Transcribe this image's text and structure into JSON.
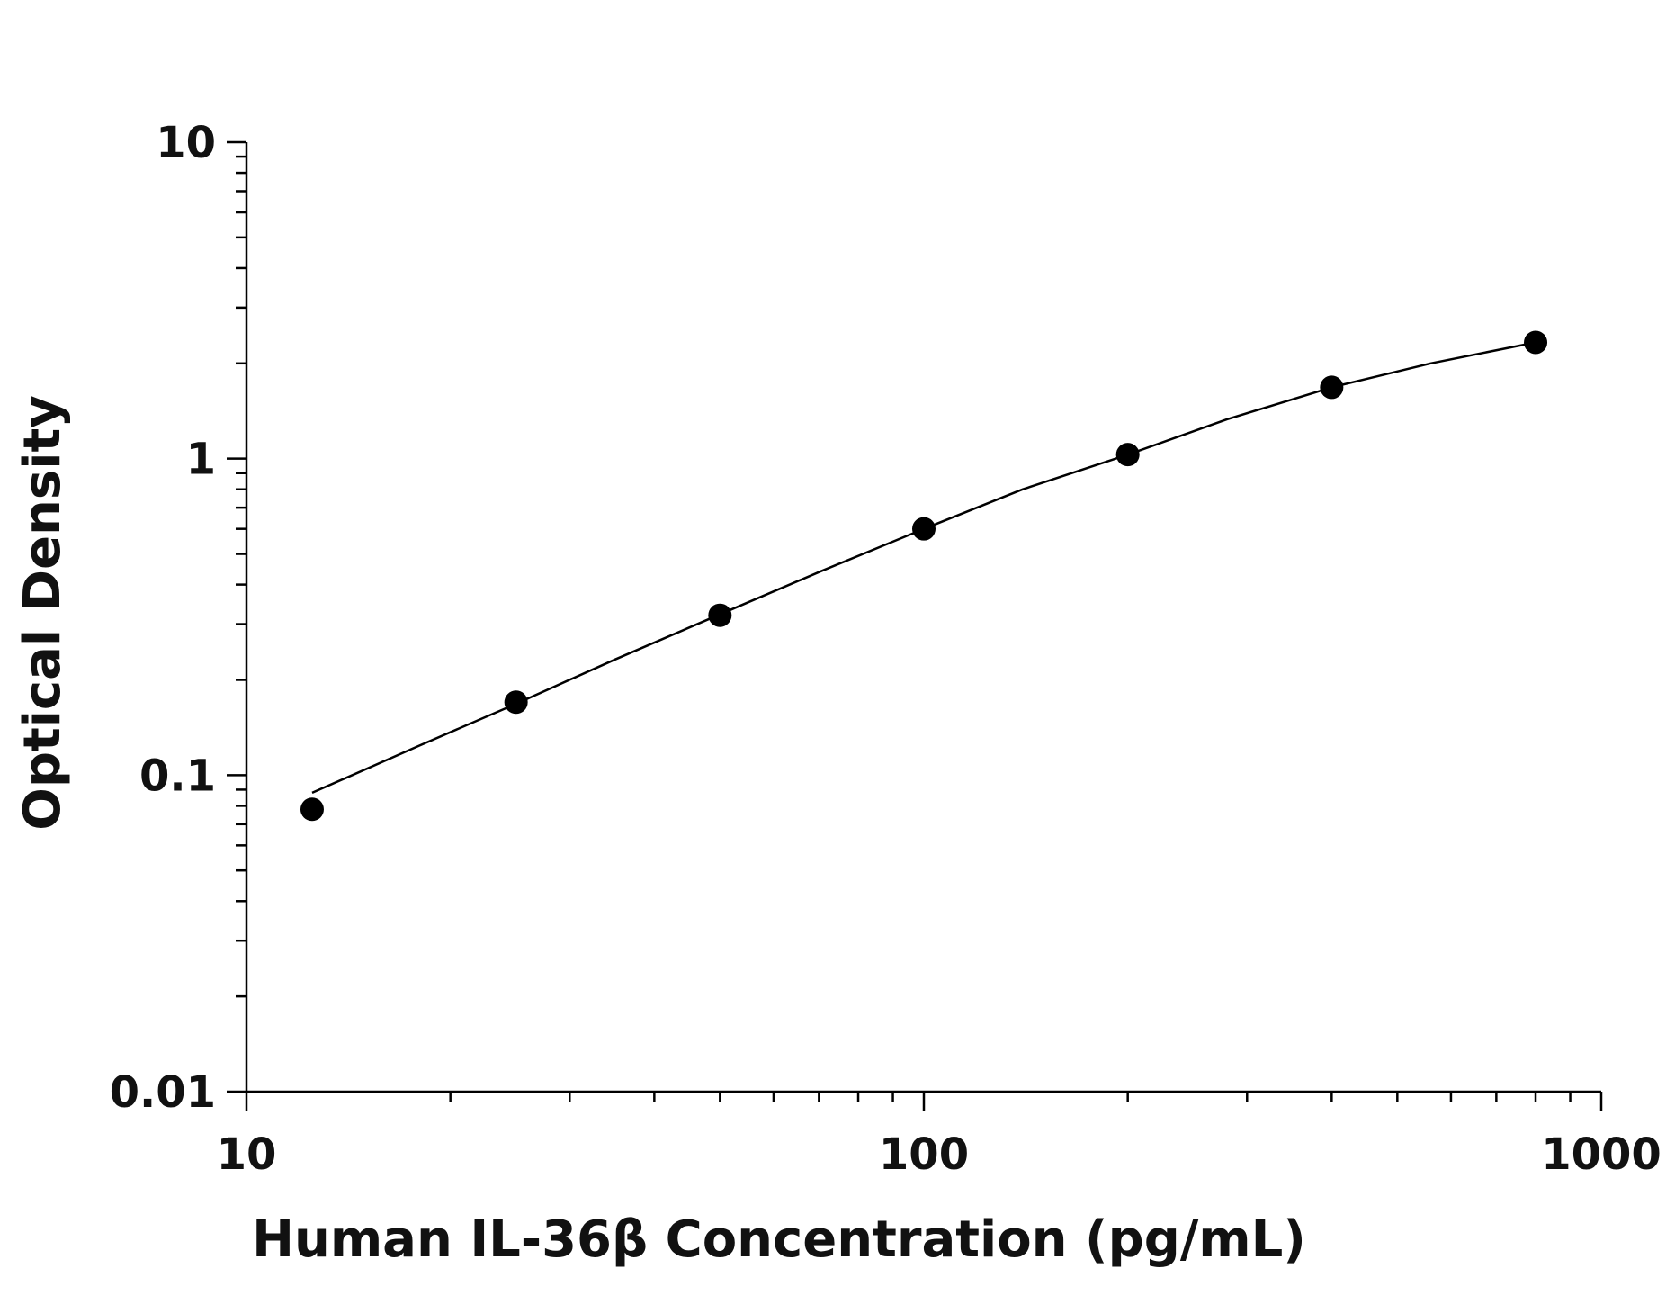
{
  "chart_data": {
    "type": "scatter",
    "title": "",
    "xlabel": "Human IL-36β Concentration (pg/mL)",
    "ylabel": "Optical Density",
    "x_scale": "log",
    "y_scale": "log",
    "xlim": [
      10,
      1000
    ],
    "ylim": [
      0.01,
      10
    ],
    "x_ticks": [
      "10",
      "100",
      "1000"
    ],
    "y_ticks": [
      "0.01",
      "0.1",
      "1",
      "10"
    ],
    "grid": false,
    "legend": "none",
    "series": [
      {
        "x": [
          12.5,
          25,
          50,
          100,
          200,
          400,
          800
        ],
        "y": [
          0.078,
          0.17,
          0.32,
          0.6,
          1.03,
          1.68,
          2.33
        ]
      }
    ],
    "fit_curve": {
      "x": [
        12.5,
        18,
        25,
        35,
        50,
        70,
        100,
        140,
        200,
        280,
        400,
        560,
        800
      ],
      "y": [
        0.088,
        0.124,
        0.168,
        0.232,
        0.322,
        0.438,
        0.6,
        0.8,
        1.03,
        1.33,
        1.68,
        2.0,
        2.33
      ]
    },
    "colors": {
      "marker": "#000000",
      "line": "#000000",
      "axis": "#000000"
    }
  }
}
